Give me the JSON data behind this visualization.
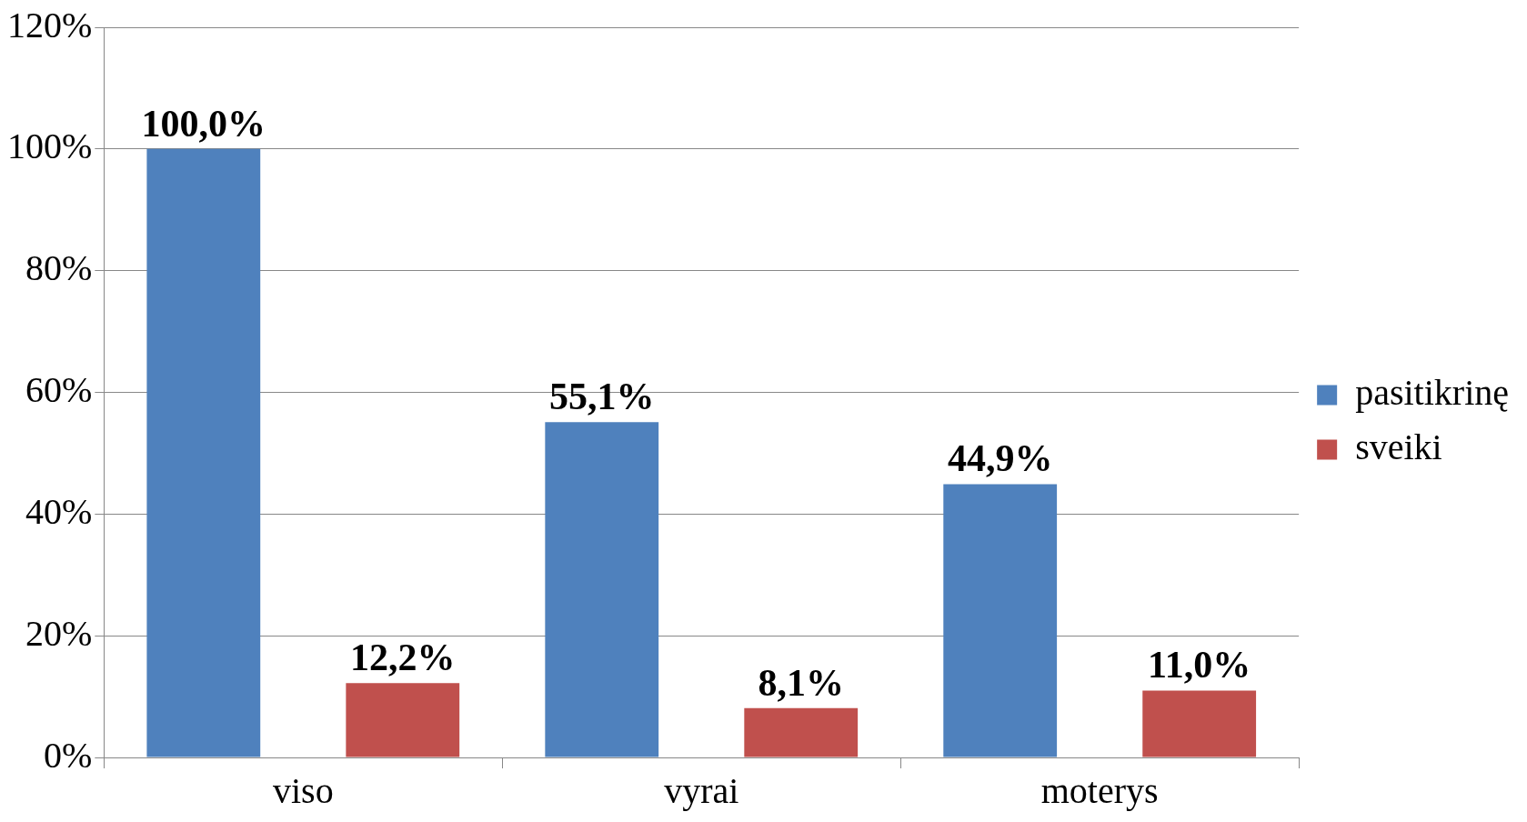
{
  "chart_data": {
    "type": "bar",
    "categories": [
      "viso",
      "vyrai",
      "moterys"
    ],
    "series": [
      {
        "name": "pasitikrinę",
        "color": "#4f81bd",
        "values": [
          100.0,
          55.1,
          44.9
        ],
        "value_labels": [
          "100,0%",
          "55,1%",
          "44,9%"
        ]
      },
      {
        "name": "sveiki",
        "color": "#c0504d",
        "values": [
          12.2,
          8.1,
          11.0
        ],
        "value_labels": [
          "12,2%",
          "8,1%",
          "11,0%"
        ]
      }
    ],
    "ylim": [
      0,
      120
    ],
    "yticks": [
      {
        "value": 0,
        "label": "0%"
      },
      {
        "value": 20,
        "label": "20%"
      },
      {
        "value": 40,
        "label": "40%"
      },
      {
        "value": 60,
        "label": "60%"
      },
      {
        "value": 80,
        "label": "80%"
      },
      {
        "value": 100,
        "label": "100%"
      },
      {
        "value": 120,
        "label": "120%"
      }
    ],
    "grid": "y",
    "legend": "right"
  }
}
